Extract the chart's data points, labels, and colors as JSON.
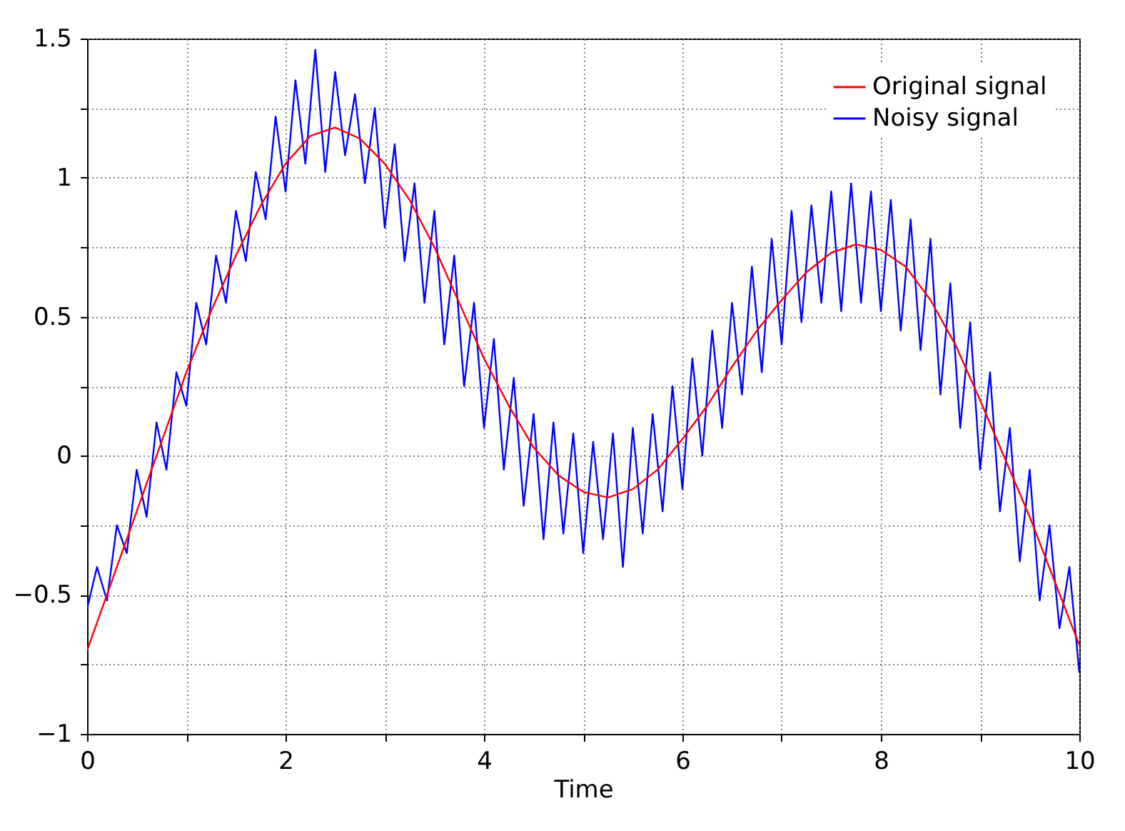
{
  "chart_data": {
    "type": "line",
    "xlabel": "Time",
    "legend": "top right",
    "grid": true,
    "line_style": "solid",
    "marker": "none",
    "xlim": [
      0,
      10
    ],
    "ylim": [
      -1,
      1.5
    ],
    "xticks": [
      0,
      {
        "value": 1,
        "label": null
      },
      2,
      {
        "value": 3,
        "label": null
      },
      4,
      {
        "value": 5,
        "label": null
      },
      6,
      {
        "value": 7,
        "label": null
      },
      8,
      {
        "value": 9,
        "label": null
      },
      10
    ],
    "yticks": [
      {
        "value": -1,
        "label": "−1"
      },
      {
        "value": -0.75,
        "label": null
      },
      {
        "value": -0.5,
        "label": "−0.5"
      },
      {
        "value": -0.25,
        "label": null
      },
      0,
      {
        "value": 0.25,
        "label": null
      },
      0.5,
      {
        "value": 0.75,
        "label": null
      },
      1,
      {
        "value": 1.25,
        "label": null
      },
      1.5
    ],
    "series": [
      {
        "name": "Original signal",
        "color": "#ff0000",
        "x": [
          0,
          0.25,
          0.5,
          0.75,
          1,
          1.25,
          1.5,
          1.75,
          2,
          2.25,
          2.5,
          2.75,
          3,
          3.25,
          3.5,
          3.75,
          4,
          4.25,
          4.5,
          4.75,
          5,
          5.25,
          5.5,
          5.75,
          6,
          6.25,
          6.5,
          6.75,
          7,
          7.25,
          7.5,
          7.75,
          8,
          8.25,
          8.5,
          8.75,
          9,
          9.25,
          9.5,
          9.75,
          10
        ],
        "values": [
          -0.7,
          -0.45,
          -0.2,
          0.05,
          0.3,
          0.52,
          0.72,
          0.9,
          1.05,
          1.15,
          1.18,
          1.14,
          1.05,
          0.92,
          0.75,
          0.55,
          0.35,
          0.18,
          0.03,
          -0.07,
          -0.13,
          -0.15,
          -0.12,
          -0.05,
          0.06,
          0.18,
          0.32,
          0.45,
          0.56,
          0.66,
          0.73,
          0.76,
          0.74,
          0.68,
          0.56,
          0.4,
          0.2,
          -0.01,
          -0.22,
          -0.45,
          -0.68
        ]
      },
      {
        "name": "Noisy signal",
        "color": "#0000ff",
        "x": [
          0,
          0.1,
          0.2,
          0.3,
          0.4,
          0.5,
          0.6,
          0.7,
          0.8,
          0.9,
          1,
          1.1,
          1.2,
          1.3,
          1.4,
          1.5,
          1.6,
          1.7,
          1.8,
          1.9,
          2,
          2.1,
          2.2,
          2.3,
          2.4,
          2.5,
          2.6,
          2.7,
          2.8,
          2.9,
          3,
          3.1,
          3.2,
          3.3,
          3.4,
          3.5,
          3.6,
          3.7,
          3.8,
          3.9,
          4,
          4.1,
          4.2,
          4.3,
          4.4,
          4.5,
          4.6,
          4.7,
          4.8,
          4.9,
          5,
          5.1,
          5.2,
          5.3,
          5.4,
          5.5,
          5.6,
          5.7,
          5.8,
          5.9,
          6,
          6.1,
          6.2,
          6.3,
          6.4,
          6.5,
          6.6,
          6.7,
          6.8,
          6.9,
          7,
          7.1,
          7.2,
          7.3,
          7.4,
          7.5,
          7.6,
          7.7,
          7.8,
          7.9,
          8,
          8.1,
          8.2,
          8.3,
          8.4,
          8.5,
          8.6,
          8.7,
          8.8,
          8.9,
          9,
          9.1,
          9.2,
          9.3,
          9.4,
          9.5,
          9.6,
          9.7,
          9.8,
          9.9,
          10
        ],
        "values": [
          -0.55,
          -0.4,
          -0.52,
          -0.25,
          -0.35,
          -0.05,
          -0.22,
          0.12,
          -0.05,
          0.3,
          0.18,
          0.55,
          0.4,
          0.72,
          0.55,
          0.88,
          0.7,
          1.02,
          0.85,
          1.22,
          0.95,
          1.35,
          1.05,
          1.46,
          1.02,
          1.38,
          1.08,
          1.3,
          0.98,
          1.25,
          0.82,
          1.12,
          0.7,
          0.98,
          0.55,
          0.88,
          0.4,
          0.72,
          0.25,
          0.55,
          0.1,
          0.42,
          -0.05,
          0.28,
          -0.18,
          0.15,
          -0.3,
          0.12,
          -0.28,
          0.08,
          -0.35,
          0.05,
          -0.3,
          0.08,
          -0.4,
          0.1,
          -0.28,
          0.15,
          -0.2,
          0.25,
          -0.12,
          0.35,
          0,
          0.45,
          0.1,
          0.55,
          0.22,
          0.68,
          0.3,
          0.78,
          0.4,
          0.88,
          0.48,
          0.9,
          0.55,
          0.95,
          0.52,
          0.98,
          0.55,
          0.95,
          0.52,
          0.92,
          0.45,
          0.85,
          0.38,
          0.78,
          0.22,
          0.62,
          0.1,
          0.48,
          -0.05,
          0.3,
          -0.2,
          0.1,
          -0.38,
          -0.05,
          -0.52,
          -0.25,
          -0.62,
          -0.4,
          -0.78
        ]
      }
    ]
  }
}
